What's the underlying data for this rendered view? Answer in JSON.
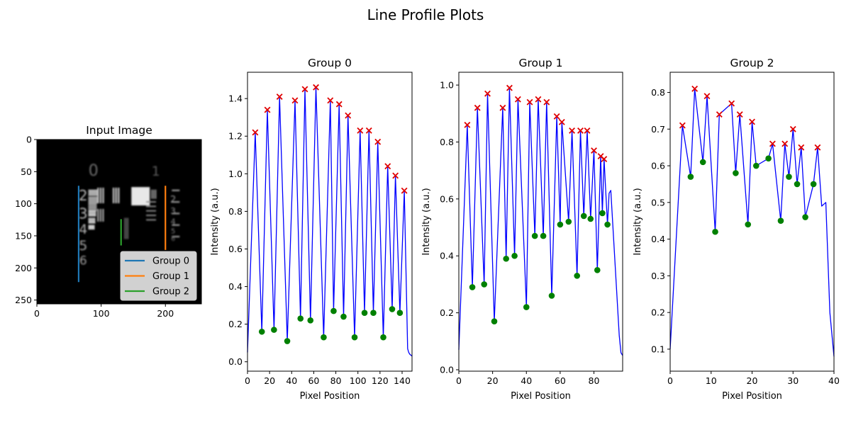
{
  "chart_data": {
    "title": "Line Profile Plots",
    "image_panel": {
      "title": "Input Image",
      "xlim": [
        0,
        256
      ],
      "ylim": [
        256,
        0
      ],
      "xticks": [
        0,
        100,
        200
      ],
      "yticks": [
        0,
        50,
        100,
        150,
        200,
        250
      ],
      "digit_labels": [
        "0",
        "1",
        "2",
        "3",
        "4",
        "5",
        "6",
        "2",
        "3",
        "4",
        "5",
        "6"
      ],
      "lines": [
        {
          "name": "Group 0",
          "color": "#1f77b4",
          "x": 65,
          "y": [
            72,
            222
          ]
        },
        {
          "name": "Group 1",
          "color": "#ff7f0e",
          "x": 200,
          "y": [
            72,
            172
          ]
        },
        {
          "name": "Group 2",
          "color": "#2ca02c",
          "x": 131,
          "y": [
            124,
            165
          ]
        }
      ],
      "legend": {
        "placement": "lower-right",
        "entries": [
          "Group 0",
          "Group 1",
          "Group 2"
        ]
      }
    },
    "profiles": [
      {
        "title": "Group 0",
        "type": "line",
        "xlabel": "Pixel Position",
        "ylabel": "Intensity (a.u.)",
        "xlim": [
          0,
          149
        ],
        "ylim": [
          -0.05,
          1.54
        ],
        "xticks": [
          0,
          20,
          40,
          60,
          80,
          100,
          120,
          140
        ],
        "yticks": [
          0.0,
          0.2,
          0.4,
          0.6,
          0.8,
          1.0,
          1.2,
          1.4
        ],
        "ytick_decimals": 1,
        "base": 0.05,
        "tail": [
          [
            145,
            0.07
          ],
          [
            146,
            0.05
          ],
          [
            147,
            0.04
          ],
          [
            149,
            0.03
          ]
        ],
        "peaks": [
          [
            7,
            1.22
          ],
          [
            18,
            1.34
          ],
          [
            29,
            1.41
          ],
          [
            43,
            1.39
          ],
          [
            52,
            1.45
          ],
          [
            62,
            1.46
          ],
          [
            75,
            1.39
          ],
          [
            83,
            1.37
          ],
          [
            91,
            1.31
          ],
          [
            102,
            1.23
          ],
          [
            110,
            1.23
          ],
          [
            118,
            1.17
          ],
          [
            127,
            1.04
          ],
          [
            134,
            0.99
          ],
          [
            142,
            0.91
          ]
        ],
        "valleys": [
          [
            13,
            0.16
          ],
          [
            24,
            0.17
          ],
          [
            36,
            0.11
          ],
          [
            48,
            0.23
          ],
          [
            57,
            0.22
          ],
          [
            69,
            0.13
          ],
          [
            78,
            0.27
          ],
          [
            87,
            0.24
          ],
          [
            97,
            0.13
          ],
          [
            106,
            0.26
          ],
          [
            114,
            0.26
          ],
          [
            123,
            0.13
          ],
          [
            131,
            0.28
          ],
          [
            138,
            0.26
          ]
        ]
      },
      {
        "title": "Group 1",
        "type": "line",
        "xlabel": "Pixel Position",
        "ylabel": "Intensity (a.u.)",
        "xlim": [
          0,
          97
        ],
        "ylim": [
          -0.005,
          1.045
        ],
        "xticks": [
          0,
          20,
          40,
          60,
          80
        ],
        "yticks": [
          0.0,
          0.2,
          0.4,
          0.6,
          0.8,
          1.0
        ],
        "ytick_decimals": 1,
        "base": 0.07,
        "tail": [
          [
            89,
            0.62
          ],
          [
            90,
            0.63
          ],
          [
            95,
            0.12
          ],
          [
            96,
            0.06
          ],
          [
            97,
            0.05
          ]
        ],
        "peaks": [
          [
            5,
            0.86
          ],
          [
            11,
            0.92
          ],
          [
            17,
            0.97
          ],
          [
            26,
            0.92
          ],
          [
            30,
            0.99
          ],
          [
            35,
            0.95
          ],
          [
            42,
            0.94
          ],
          [
            47,
            0.95
          ],
          [
            52,
            0.94
          ],
          [
            58,
            0.89
          ],
          [
            61,
            0.87
          ],
          [
            67,
            0.84
          ],
          [
            72,
            0.84
          ],
          [
            76,
            0.84
          ],
          [
            80,
            0.77
          ],
          [
            84,
            0.75
          ],
          [
            86,
            0.74
          ]
        ],
        "valleys": [
          [
            8,
            0.29
          ],
          [
            15,
            0.3
          ],
          [
            21,
            0.17
          ],
          [
            28,
            0.39
          ],
          [
            33,
            0.4
          ],
          [
            40,
            0.22
          ],
          [
            45,
            0.47
          ],
          [
            50,
            0.47
          ],
          [
            55,
            0.26
          ],
          [
            60,
            0.51
          ],
          [
            65,
            0.52
          ],
          [
            70,
            0.33
          ],
          [
            74,
            0.54
          ],
          [
            78,
            0.53
          ],
          [
            82,
            0.35
          ],
          [
            85,
            0.55
          ],
          [
            88,
            0.51
          ]
        ]
      },
      {
        "title": "Group 2",
        "type": "line",
        "xlabel": "Pixel Position",
        "ylabel": "Intensity (a.u.)",
        "xlim": [
          0,
          40
        ],
        "ylim": [
          0.04,
          0.855
        ],
        "xticks": [
          0,
          10,
          20,
          30,
          40
        ],
        "yticks": [
          0.1,
          0.2,
          0.3,
          0.4,
          0.5,
          0.6,
          0.7,
          0.8
        ],
        "ytick_decimals": 1,
        "base": 0.1,
        "tail": [
          [
            37,
            0.49
          ],
          [
            38,
            0.5
          ],
          [
            39,
            0.2
          ],
          [
            40,
            0.08
          ]
        ],
        "peaks": [
          [
            3,
            0.71
          ],
          [
            6,
            0.81
          ],
          [
            9,
            0.79
          ],
          [
            12,
            0.74
          ],
          [
            15,
            0.77
          ],
          [
            17,
            0.74
          ],
          [
            20,
            0.72
          ],
          [
            25,
            0.66
          ],
          [
            28,
            0.66
          ],
          [
            30,
            0.7
          ],
          [
            32,
            0.65
          ],
          [
            36,
            0.65
          ]
        ],
        "valleys": [
          [
            5,
            0.57
          ],
          [
            8,
            0.61
          ],
          [
            11,
            0.42
          ],
          [
            16,
            0.58
          ],
          [
            19,
            0.44
          ],
          [
            21,
            0.6
          ],
          [
            24,
            0.62
          ],
          [
            27,
            0.45
          ],
          [
            29,
            0.57
          ],
          [
            31,
            0.55
          ],
          [
            33,
            0.46
          ],
          [
            35,
            0.55
          ]
        ]
      }
    ]
  },
  "colors": {
    "profile_line": "#0000ff",
    "peak_marker": "#e00000",
    "valley_marker": "#008000",
    "image_background": "#000000"
  }
}
